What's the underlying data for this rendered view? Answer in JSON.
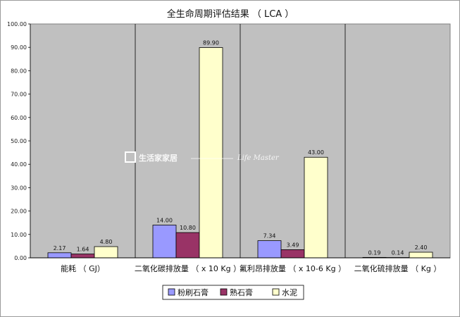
{
  "chart_data": {
    "type": "bar",
    "title": "全生命周期评估结果 （ LCA ）",
    "categories": [
      "能耗 （ GJ）",
      "二氧化碳排放量 （ x 10 Kg ）",
      "氟利昂排放量 （ x 10-6 Kg ）",
      "二氧化硫排放量 （ Kg ）"
    ],
    "series": [
      {
        "name": "粉刷石膏",
        "color": "#9999ff",
        "values": [
          2.17,
          14.0,
          7.34,
          0.19
        ]
      },
      {
        "name": "熟石膏",
        "color": "#993366",
        "values": [
          1.64,
          10.8,
          3.49,
          0.14
        ]
      },
      {
        "name": "水泥",
        "color": "#ffffcc",
        "values": [
          4.8,
          89.9,
          43.0,
          2.4
        ]
      }
    ],
    "ylim": [
      0,
      100
    ],
    "yticks": [
      "0.00",
      "10.00",
      "20.00",
      "30.00",
      "40.00",
      "50.00",
      "60.00",
      "70.00",
      "80.00",
      "90.00",
      "100.00"
    ],
    "value_labels": [
      [
        "2.17",
        "14.00",
        "7.34",
        "0.19"
      ],
      [
        "1.64",
        "10.80",
        "3.49",
        "0.14"
      ],
      [
        "4.80",
        "89.90",
        "43.00",
        "2.40"
      ]
    ],
    "grid": "vertical category dividers",
    "plot_background": "#c0c0c0",
    "legend_position": "bottom",
    "xlabel": "",
    "ylabel": ""
  },
  "watermark": {
    "brand": "生活家家居",
    "script": "Life Master"
  }
}
